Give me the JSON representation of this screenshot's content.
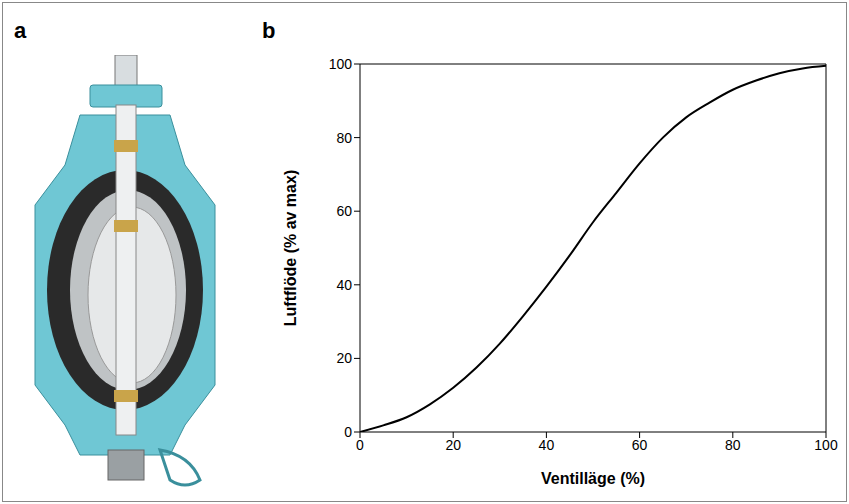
{
  "panel_labels": [
    "a",
    "b"
  ],
  "chart_data": {
    "type": "line",
    "x_label": "Ventilläge (%)",
    "y_label": "Luftflöde (% av max)",
    "x": [
      0,
      5,
      10,
      15,
      20,
      25,
      30,
      35,
      40,
      45,
      50,
      55,
      60,
      65,
      70,
      75,
      80,
      85,
      90,
      95,
      100
    ],
    "values": [
      0,
      1.8,
      4,
      7.5,
      12,
      17.5,
      24,
      31.5,
      39.5,
      48,
      57,
      65,
      73,
      80,
      85.5,
      89.5,
      93,
      95.5,
      97.5,
      98.8,
      99.5
    ],
    "color": "#000000",
    "xlim": [
      0,
      100
    ],
    "ylim": [
      0,
      100
    ],
    "xticks": [
      0,
      20,
      40,
      60,
      80,
      100
    ],
    "yticks": [
      0,
      20,
      40,
      60,
      80,
      100
    ],
    "grid": false
  }
}
